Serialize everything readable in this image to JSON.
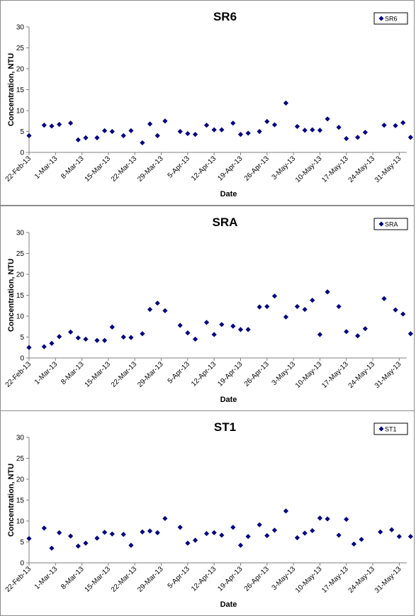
{
  "colors": {
    "marker": "#00007f",
    "axis": "#808080",
    "frame": "#8c8c8c"
  },
  "chart_data": [
    {
      "type": "scatter",
      "title": "SR6",
      "legend": "SR6",
      "legend_position": "top-right",
      "xlabel": "Date",
      "ylabel": "Concentration, NTU",
      "ylim": [
        0,
        30
      ],
      "yticks": [
        0,
        5,
        10,
        15,
        20,
        25,
        30
      ],
      "xlim": [
        "2013-02-22",
        "2013-06-02"
      ],
      "xtick_labels": [
        "22-Feb-13",
        "1-Mar-13",
        "8-Mar-13",
        "15-Mar-13",
        "22-Mar-13",
        "29-Mar-13",
        "5-Apr-13",
        "12-Apr-13",
        "19-Apr-13",
        "26-Apr-13",
        "3-May-13",
        "10-May-13",
        "17-May-13",
        "24-May-13",
        "31-May-13"
      ],
      "grid": false,
      "points": [
        {
          "x": "2013-02-22",
          "y": 4.0
        },
        {
          "x": "2013-02-26",
          "y": 6.5
        },
        {
          "x": "2013-02-28",
          "y": 6.3
        },
        {
          "x": "2013-03-02",
          "y": 6.7
        },
        {
          "x": "2013-03-05",
          "y": 7.0
        },
        {
          "x": "2013-03-07",
          "y": 3.0
        },
        {
          "x": "2013-03-09",
          "y": 3.5
        },
        {
          "x": "2013-03-12",
          "y": 3.5
        },
        {
          "x": "2013-03-14",
          "y": 5.2
        },
        {
          "x": "2013-03-16",
          "y": 5.0
        },
        {
          "x": "2013-03-19",
          "y": 4.0
        },
        {
          "x": "2013-03-21",
          "y": 5.2
        },
        {
          "x": "2013-03-24",
          "y": 2.3
        },
        {
          "x": "2013-03-26",
          "y": 6.8
        },
        {
          "x": "2013-03-28",
          "y": 4.0
        },
        {
          "x": "2013-03-30",
          "y": 7.5
        },
        {
          "x": "2013-04-03",
          "y": 5.0
        },
        {
          "x": "2013-04-05",
          "y": 4.5
        },
        {
          "x": "2013-04-07",
          "y": 4.3
        },
        {
          "x": "2013-04-10",
          "y": 6.5
        },
        {
          "x": "2013-04-12",
          "y": 5.4
        },
        {
          "x": "2013-04-14",
          "y": 5.4
        },
        {
          "x": "2013-04-17",
          "y": 7.0
        },
        {
          "x": "2013-04-19",
          "y": 4.3
        },
        {
          "x": "2013-04-21",
          "y": 4.6
        },
        {
          "x": "2013-04-24",
          "y": 5.0
        },
        {
          "x": "2013-04-26",
          "y": 7.4
        },
        {
          "x": "2013-04-28",
          "y": 6.6
        },
        {
          "x": "2013-05-01",
          "y": 11.8
        },
        {
          "x": "2013-05-04",
          "y": 6.2
        },
        {
          "x": "2013-05-06",
          "y": 5.3
        },
        {
          "x": "2013-05-08",
          "y": 5.4
        },
        {
          "x": "2013-05-10",
          "y": 5.3
        },
        {
          "x": "2013-05-12",
          "y": 8.0
        },
        {
          "x": "2013-05-15",
          "y": 6.0
        },
        {
          "x": "2013-05-17",
          "y": 3.3
        },
        {
          "x": "2013-05-20",
          "y": 3.6
        },
        {
          "x": "2013-05-22",
          "y": 4.8
        },
        {
          "x": "2013-05-27",
          "y": 6.5
        },
        {
          "x": "2013-05-30",
          "y": 6.4
        },
        {
          "x": "2013-06-01",
          "y": 7.1
        },
        {
          "x": "2013-06-03",
          "y": 3.6
        }
      ]
    },
    {
      "type": "scatter",
      "title": "SRA",
      "legend": "SRA",
      "legend_position": "top-right",
      "xlabel": "Date",
      "ylabel": "Concentration, NTU",
      "ylim": [
        0,
        30
      ],
      "yticks": [
        0,
        5,
        10,
        15,
        20,
        25,
        30
      ],
      "xlim": [
        "2013-02-22",
        "2013-06-02"
      ],
      "xtick_labels": [
        "22-Feb-13",
        "1-Mar-13",
        "8-Mar-13",
        "15-Mar-13",
        "22-Mar-13",
        "29-Mar-13",
        "5-Apr-13",
        "12-Apr-13",
        "19-Apr-13",
        "26-Apr-13",
        "3-May-13",
        "10-May-13",
        "17-May-13",
        "24-May-13",
        "31-May-13"
      ],
      "grid": false,
      "points": [
        {
          "x": "2013-02-22",
          "y": 2.5
        },
        {
          "x": "2013-02-26",
          "y": 2.7
        },
        {
          "x": "2013-02-28",
          "y": 3.5
        },
        {
          "x": "2013-03-02",
          "y": 5.1
        },
        {
          "x": "2013-03-05",
          "y": 6.2
        },
        {
          "x": "2013-03-07",
          "y": 4.8
        },
        {
          "x": "2013-03-09",
          "y": 4.5
        },
        {
          "x": "2013-03-12",
          "y": 4.2
        },
        {
          "x": "2013-03-14",
          "y": 4.2
        },
        {
          "x": "2013-03-16",
          "y": 7.4
        },
        {
          "x": "2013-03-19",
          "y": 5.0
        },
        {
          "x": "2013-03-21",
          "y": 4.9
        },
        {
          "x": "2013-03-24",
          "y": 5.8
        },
        {
          "x": "2013-03-26",
          "y": 11.6
        },
        {
          "x": "2013-03-28",
          "y": 13.1
        },
        {
          "x": "2013-03-30",
          "y": 11.3
        },
        {
          "x": "2013-04-03",
          "y": 7.8
        },
        {
          "x": "2013-04-05",
          "y": 6.0
        },
        {
          "x": "2013-04-07",
          "y": 4.5
        },
        {
          "x": "2013-04-10",
          "y": 8.5
        },
        {
          "x": "2013-04-12",
          "y": 5.6
        },
        {
          "x": "2013-04-14",
          "y": 8.0
        },
        {
          "x": "2013-04-17",
          "y": 7.6
        },
        {
          "x": "2013-04-19",
          "y": 6.8
        },
        {
          "x": "2013-04-21",
          "y": 6.8
        },
        {
          "x": "2013-04-24",
          "y": 12.2
        },
        {
          "x": "2013-04-26",
          "y": 12.3
        },
        {
          "x": "2013-04-28",
          "y": 14.8
        },
        {
          "x": "2013-05-01",
          "y": 9.8
        },
        {
          "x": "2013-05-04",
          "y": 12.3
        },
        {
          "x": "2013-05-06",
          "y": 11.6
        },
        {
          "x": "2013-05-08",
          "y": 13.8
        },
        {
          "x": "2013-05-10",
          "y": 5.6
        },
        {
          "x": "2013-05-12",
          "y": 15.8
        },
        {
          "x": "2013-05-15",
          "y": 12.3
        },
        {
          "x": "2013-05-17",
          "y": 6.3
        },
        {
          "x": "2013-05-20",
          "y": 5.3
        },
        {
          "x": "2013-05-22",
          "y": 7.0
        },
        {
          "x": "2013-05-27",
          "y": 14.2
        },
        {
          "x": "2013-05-30",
          "y": 11.5
        },
        {
          "x": "2013-06-01",
          "y": 10.5
        },
        {
          "x": "2013-06-03",
          "y": 5.8
        }
      ]
    },
    {
      "type": "scatter",
      "title": "ST1",
      "legend": "ST1",
      "legend_position": "top-right",
      "xlabel": "Date",
      "ylabel": "Concentration, NTU",
      "ylim": [
        0,
        30
      ],
      "yticks": [
        0,
        5,
        10,
        15,
        20,
        25,
        30
      ],
      "xlim": [
        "2013-02-22",
        "2013-06-02"
      ],
      "xtick_labels": [
        "22-Feb-13",
        "1-Mar-13",
        "8-Mar-13",
        "15-Mar-13",
        "22-Mar-13",
        "29-Mar-13",
        "5-Apr-13",
        "12-Apr-13",
        "19-Apr-13",
        "26-Apr-13",
        "3-May-13",
        "10-May-13",
        "17-May-13",
        "24-May-13",
        "31-May-13"
      ],
      "grid": false,
      "points": [
        {
          "x": "2013-02-22",
          "y": 5.8
        },
        {
          "x": "2013-02-26",
          "y": 8.3
        },
        {
          "x": "2013-02-28",
          "y": 3.5
        },
        {
          "x": "2013-03-02",
          "y": 7.2
        },
        {
          "x": "2013-03-05",
          "y": 6.4
        },
        {
          "x": "2013-03-07",
          "y": 4.0
        },
        {
          "x": "2013-03-09",
          "y": 4.7
        },
        {
          "x": "2013-03-12",
          "y": 5.9
        },
        {
          "x": "2013-03-14",
          "y": 7.3
        },
        {
          "x": "2013-03-16",
          "y": 6.9
        },
        {
          "x": "2013-03-19",
          "y": 6.8
        },
        {
          "x": "2013-03-21",
          "y": 4.2
        },
        {
          "x": "2013-03-24",
          "y": 7.4
        },
        {
          "x": "2013-03-26",
          "y": 7.6
        },
        {
          "x": "2013-03-28",
          "y": 7.2
        },
        {
          "x": "2013-03-30",
          "y": 10.6
        },
        {
          "x": "2013-04-03",
          "y": 8.5
        },
        {
          "x": "2013-04-05",
          "y": 4.7
        },
        {
          "x": "2013-04-07",
          "y": 5.4
        },
        {
          "x": "2013-04-10",
          "y": 7.0
        },
        {
          "x": "2013-04-12",
          "y": 7.2
        },
        {
          "x": "2013-04-14",
          "y": 6.6
        },
        {
          "x": "2013-04-17",
          "y": 8.5
        },
        {
          "x": "2013-04-19",
          "y": 4.2
        },
        {
          "x": "2013-04-21",
          "y": 6.3
        },
        {
          "x": "2013-04-24",
          "y": 9.1
        },
        {
          "x": "2013-04-26",
          "y": 6.5
        },
        {
          "x": "2013-04-28",
          "y": 7.8
        },
        {
          "x": "2013-05-01",
          "y": 12.4
        },
        {
          "x": "2013-05-04",
          "y": 6.0
        },
        {
          "x": "2013-05-06",
          "y": 7.1
        },
        {
          "x": "2013-05-08",
          "y": 7.7
        },
        {
          "x": "2013-05-10",
          "y": 10.7
        },
        {
          "x": "2013-05-12",
          "y": 10.5
        },
        {
          "x": "2013-05-15",
          "y": 6.6
        },
        {
          "x": "2013-05-17",
          "y": 10.4
        },
        {
          "x": "2013-05-19",
          "y": 4.5
        },
        {
          "x": "2013-05-21",
          "y": 5.6
        },
        {
          "x": "2013-05-26",
          "y": 7.4
        },
        {
          "x": "2013-05-29",
          "y": 7.9
        },
        {
          "x": "2013-05-31",
          "y": 6.3
        },
        {
          "x": "2013-06-03",
          "y": 6.3
        }
      ]
    }
  ]
}
